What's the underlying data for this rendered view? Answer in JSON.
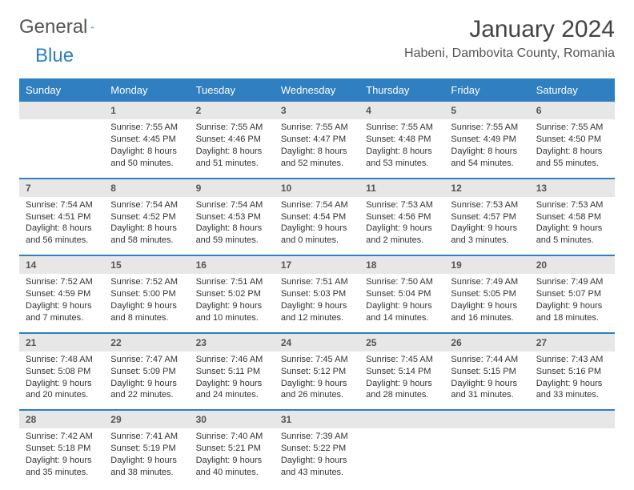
{
  "brand": {
    "part1": "General",
    "part2": "Blue"
  },
  "title": "January 2024",
  "location": "Habeni, Dambovita County, Romania",
  "colors": {
    "accent": "#2f7fc1",
    "header_text": "#ffffff",
    "daynum_bg": "#e7e7e7",
    "text": "#333333"
  },
  "day_headers": [
    "Sunday",
    "Monday",
    "Tuesday",
    "Wednesday",
    "Thursday",
    "Friday",
    "Saturday"
  ],
  "weeks": [
    {
      "nums": [
        "",
        "1",
        "2",
        "3",
        "4",
        "5",
        "6"
      ],
      "details": [
        "",
        "Sunrise: 7:55 AM\nSunset: 4:45 PM\nDaylight: 8 hours and 50 minutes.",
        "Sunrise: 7:55 AM\nSunset: 4:46 PM\nDaylight: 8 hours and 51 minutes.",
        "Sunrise: 7:55 AM\nSunset: 4:47 PM\nDaylight: 8 hours and 52 minutes.",
        "Sunrise: 7:55 AM\nSunset: 4:48 PM\nDaylight: 8 hours and 53 minutes.",
        "Sunrise: 7:55 AM\nSunset: 4:49 PM\nDaylight: 8 hours and 54 minutes.",
        "Sunrise: 7:55 AM\nSunset: 4:50 PM\nDaylight: 8 hours and 55 minutes."
      ]
    },
    {
      "nums": [
        "7",
        "8",
        "9",
        "10",
        "11",
        "12",
        "13"
      ],
      "details": [
        "Sunrise: 7:54 AM\nSunset: 4:51 PM\nDaylight: 8 hours and 56 minutes.",
        "Sunrise: 7:54 AM\nSunset: 4:52 PM\nDaylight: 8 hours and 58 minutes.",
        "Sunrise: 7:54 AM\nSunset: 4:53 PM\nDaylight: 8 hours and 59 minutes.",
        "Sunrise: 7:54 AM\nSunset: 4:54 PM\nDaylight: 9 hours and 0 minutes.",
        "Sunrise: 7:53 AM\nSunset: 4:56 PM\nDaylight: 9 hours and 2 minutes.",
        "Sunrise: 7:53 AM\nSunset: 4:57 PM\nDaylight: 9 hours and 3 minutes.",
        "Sunrise: 7:53 AM\nSunset: 4:58 PM\nDaylight: 9 hours and 5 minutes."
      ]
    },
    {
      "nums": [
        "14",
        "15",
        "16",
        "17",
        "18",
        "19",
        "20"
      ],
      "details": [
        "Sunrise: 7:52 AM\nSunset: 4:59 PM\nDaylight: 9 hours and 7 minutes.",
        "Sunrise: 7:52 AM\nSunset: 5:00 PM\nDaylight: 9 hours and 8 minutes.",
        "Sunrise: 7:51 AM\nSunset: 5:02 PM\nDaylight: 9 hours and 10 minutes.",
        "Sunrise: 7:51 AM\nSunset: 5:03 PM\nDaylight: 9 hours and 12 minutes.",
        "Sunrise: 7:50 AM\nSunset: 5:04 PM\nDaylight: 9 hours and 14 minutes.",
        "Sunrise: 7:49 AM\nSunset: 5:05 PM\nDaylight: 9 hours and 16 minutes.",
        "Sunrise: 7:49 AM\nSunset: 5:07 PM\nDaylight: 9 hours and 18 minutes."
      ]
    },
    {
      "nums": [
        "21",
        "22",
        "23",
        "24",
        "25",
        "26",
        "27"
      ],
      "details": [
        "Sunrise: 7:48 AM\nSunset: 5:08 PM\nDaylight: 9 hours and 20 minutes.",
        "Sunrise: 7:47 AM\nSunset: 5:09 PM\nDaylight: 9 hours and 22 minutes.",
        "Sunrise: 7:46 AM\nSunset: 5:11 PM\nDaylight: 9 hours and 24 minutes.",
        "Sunrise: 7:45 AM\nSunset: 5:12 PM\nDaylight: 9 hours and 26 minutes.",
        "Sunrise: 7:45 AM\nSunset: 5:14 PM\nDaylight: 9 hours and 28 minutes.",
        "Sunrise: 7:44 AM\nSunset: 5:15 PM\nDaylight: 9 hours and 31 minutes.",
        "Sunrise: 7:43 AM\nSunset: 5:16 PM\nDaylight: 9 hours and 33 minutes."
      ]
    },
    {
      "nums": [
        "28",
        "29",
        "30",
        "31",
        "",
        "",
        ""
      ],
      "details": [
        "Sunrise: 7:42 AM\nSunset: 5:18 PM\nDaylight: 9 hours and 35 minutes.",
        "Sunrise: 7:41 AM\nSunset: 5:19 PM\nDaylight: 9 hours and 38 minutes.",
        "Sunrise: 7:40 AM\nSunset: 5:21 PM\nDaylight: 9 hours and 40 minutes.",
        "Sunrise: 7:39 AM\nSunset: 5:22 PM\nDaylight: 9 hours and 43 minutes.",
        "",
        "",
        ""
      ]
    }
  ]
}
